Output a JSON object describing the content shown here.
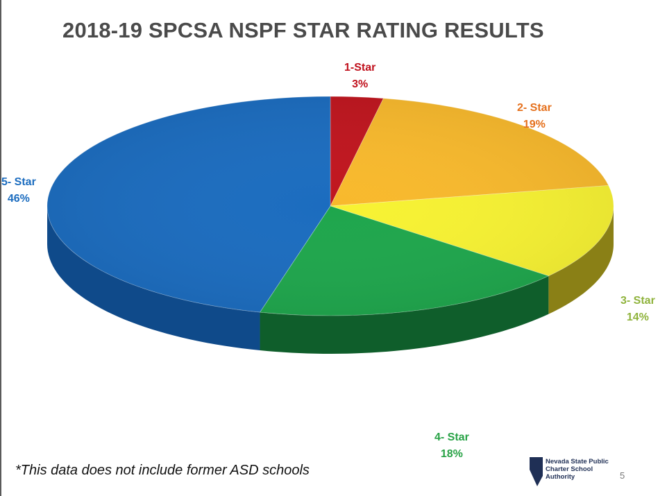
{
  "chart_data": {
    "type": "pie",
    "title": "2018-19 SPCSA NSPF STAR RATING RESULTS",
    "categories": [
      "1-Star",
      "2- Star",
      "3- Star",
      "4- Star",
      "5- Star"
    ],
    "values": [
      3,
      19,
      14,
      18,
      46
    ],
    "value_labels": [
      "3%",
      "19%",
      "14%",
      "18%",
      "46%"
    ],
    "colors": [
      "#c0151e",
      "#f8b92c",
      "#f7f232",
      "#1ea64c",
      "#1b6cbf"
    ],
    "side_colors": [
      "#7a0c12",
      "#b88418",
      "#8a8016",
      "#0f5e2b",
      "#0f4a8a"
    ],
    "label_colors": [
      "#c0101c",
      "#e5701c",
      "#8fb33c",
      "#27a245",
      "#1b6cbf"
    ]
  },
  "footnote": "*This data does not include former ASD schools",
  "logo": {
    "line1": "Nevada State Public",
    "line2": "Charter School",
    "line3": "Authority"
  },
  "page_number": "5"
}
